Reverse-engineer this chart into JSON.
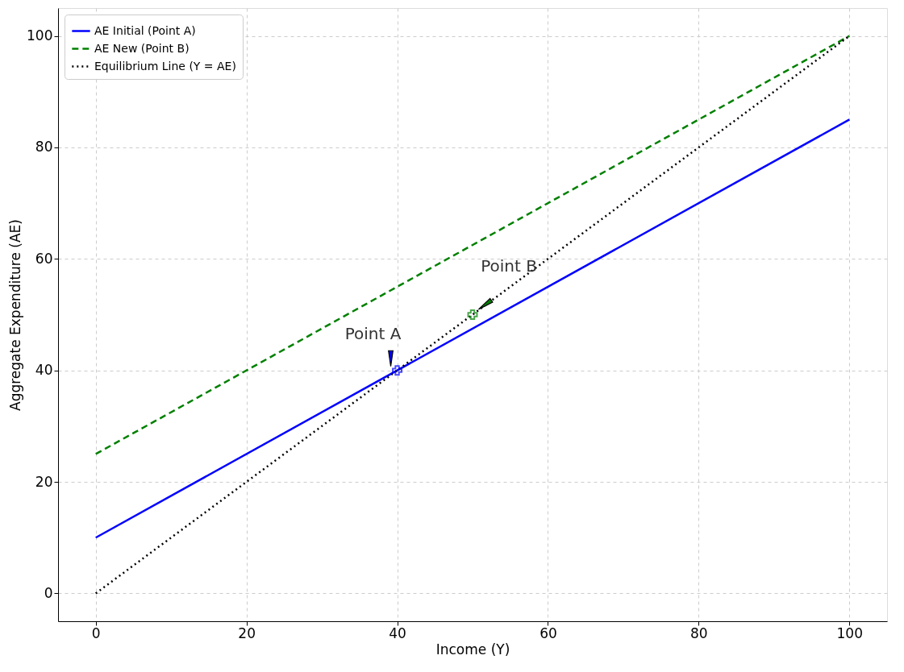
{
  "chart_data": {
    "type": "line",
    "xlabel": "Income (Y)",
    "ylabel": "Aggregate Expenditure (AE)",
    "x": [
      0,
      100
    ],
    "xlim": [
      -5,
      105
    ],
    "ylim": [
      -5,
      105
    ],
    "xticks": [
      0,
      20,
      40,
      60,
      80,
      100
    ],
    "yticks": [
      0,
      20,
      40,
      60,
      80,
      100
    ],
    "grid": true,
    "legend": "top left",
    "series": [
      {
        "name": "AE Initial (Point A)",
        "color": "#0000ff",
        "values": [
          10,
          85
        ],
        "line_style": "solid"
      },
      {
        "name": "AE New (Point B)",
        "color": "#008000",
        "values": [
          25,
          100
        ],
        "line_style": "dashed"
      },
      {
        "name": "Equilibrium Line (Y = AE)",
        "color": "#000000",
        "values": [
          0,
          100
        ],
        "line_style": "dotted"
      },
      {
        "type": "scatter",
        "marker": "cross",
        "color": "#0000ff",
        "x": [
          40
        ],
        "values": [
          40
        ]
      },
      {
        "type": "scatter",
        "marker": "cross",
        "color": "#008000",
        "x": [
          50
        ],
        "values": [
          50
        ]
      }
    ],
    "annotations": [
      {
        "text": "Point A",
        "x": 40,
        "y": 40
      },
      {
        "text": "Point B",
        "x": 50,
        "y": 50
      }
    ]
  }
}
